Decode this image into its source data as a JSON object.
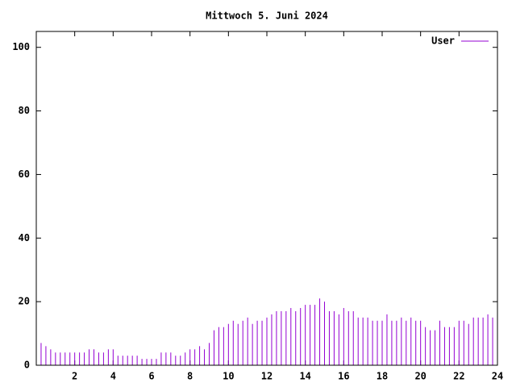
{
  "chart_data": {
    "type": "impulse",
    "title": "Mittwoch 5. Juni 2024",
    "x": [
      0,
      0.25,
      0.5,
      0.75,
      1,
      1.25,
      1.5,
      1.75,
      2,
      2.25,
      2.5,
      2.75,
      3,
      3.25,
      3.5,
      3.75,
      4,
      4.25,
      4.5,
      4.75,
      5,
      5.25,
      5.5,
      5.75,
      6,
      6.25,
      6.5,
      6.75,
      7,
      7.25,
      7.5,
      7.75,
      8,
      8.25,
      8.5,
      8.75,
      9,
      9.25,
      9.5,
      9.75,
      10,
      10.25,
      10.5,
      10.75,
      11,
      11.25,
      11.5,
      11.75,
      12,
      12.25,
      12.5,
      12.75,
      13,
      13.25,
      13.5,
      13.75,
      14,
      14.25,
      14.5,
      14.75,
      15,
      15.25,
      15.5,
      15.75,
      16,
      16.25,
      16.5,
      16.75,
      17,
      17.25,
      17.5,
      17.75,
      18,
      18.25,
      18.5,
      18.75,
      19,
      19.25,
      19.5,
      19.75,
      20,
      20.25,
      20.5,
      20.75,
      21,
      21.25,
      21.5,
      21.75,
      22,
      22.25,
      22.5,
      22.75,
      23,
      23.25,
      23.5,
      23.75
    ],
    "series": [
      {
        "name": "User",
        "color": "#9400d3",
        "values": [
          11,
          7,
          6,
          5,
          4,
          4,
          4,
          4,
          4,
          4,
          4,
          5,
          5,
          4,
          4,
          5,
          5,
          3,
          3,
          3,
          3,
          3,
          2,
          2,
          2,
          2,
          4,
          4,
          4,
          3,
          3,
          4,
          5,
          5,
          6,
          5,
          7,
          11,
          12,
          12,
          13,
          14,
          13,
          14,
          15,
          13,
          14,
          14,
          15,
          16,
          17,
          17,
          17,
          18,
          17,
          18,
          19,
          19,
          19,
          21,
          20,
          17,
          17,
          16,
          18,
          17,
          17,
          15,
          15,
          15,
          14,
          14,
          14,
          16,
          14,
          14,
          15,
          14,
          15,
          14,
          14,
          12,
          11,
          11,
          14,
          12,
          12,
          12,
          14,
          14,
          13,
          15,
          15,
          15,
          16,
          15
        ]
      }
    ],
    "xlim": [
      0,
      24
    ],
    "ylim": [
      0,
      105
    ],
    "xticks": [
      2,
      4,
      6,
      8,
      10,
      12,
      14,
      16,
      18,
      20,
      22,
      24
    ],
    "yticks": [
      0,
      20,
      40,
      60,
      80,
      100
    ],
    "legend": "top-right"
  }
}
